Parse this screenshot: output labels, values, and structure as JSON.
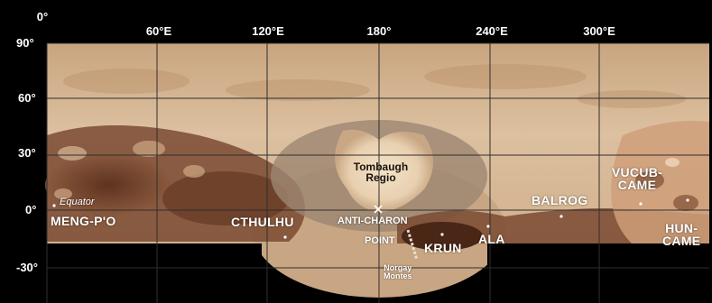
{
  "map": {
    "longitude_labels": [
      "0°",
      "60°E",
      "120°E",
      "180°",
      "240°E",
      "300°E"
    ],
    "latitude_labels": [
      "90°",
      "60°",
      "30°",
      "0°",
      "-30°"
    ],
    "equator_label": "Equator",
    "features": {
      "meng_po": "MENG-P'O",
      "cthulhu": "CTHULHU",
      "tombaugh_line1": "Tombaugh",
      "tombaugh_line2": "Regio",
      "anti_charon_line1": "ANTI-CHARON",
      "anti_charon_line2": "POINT",
      "krun": "KRUN",
      "ala": "ALA",
      "balrog": "BALROG",
      "vucub_line1": "VUCUB-",
      "vucub_line2": "CAME",
      "hun_line1": "HUN-",
      "hun_line2": "CAME",
      "norgay_line1": "Norgay",
      "norgay_line2": "Montes"
    },
    "colors": {
      "background": "#000000",
      "terrain_light": "#d9b995",
      "terrain_dark": "#6b3e28",
      "grid": "#3a3a3a"
    }
  }
}
